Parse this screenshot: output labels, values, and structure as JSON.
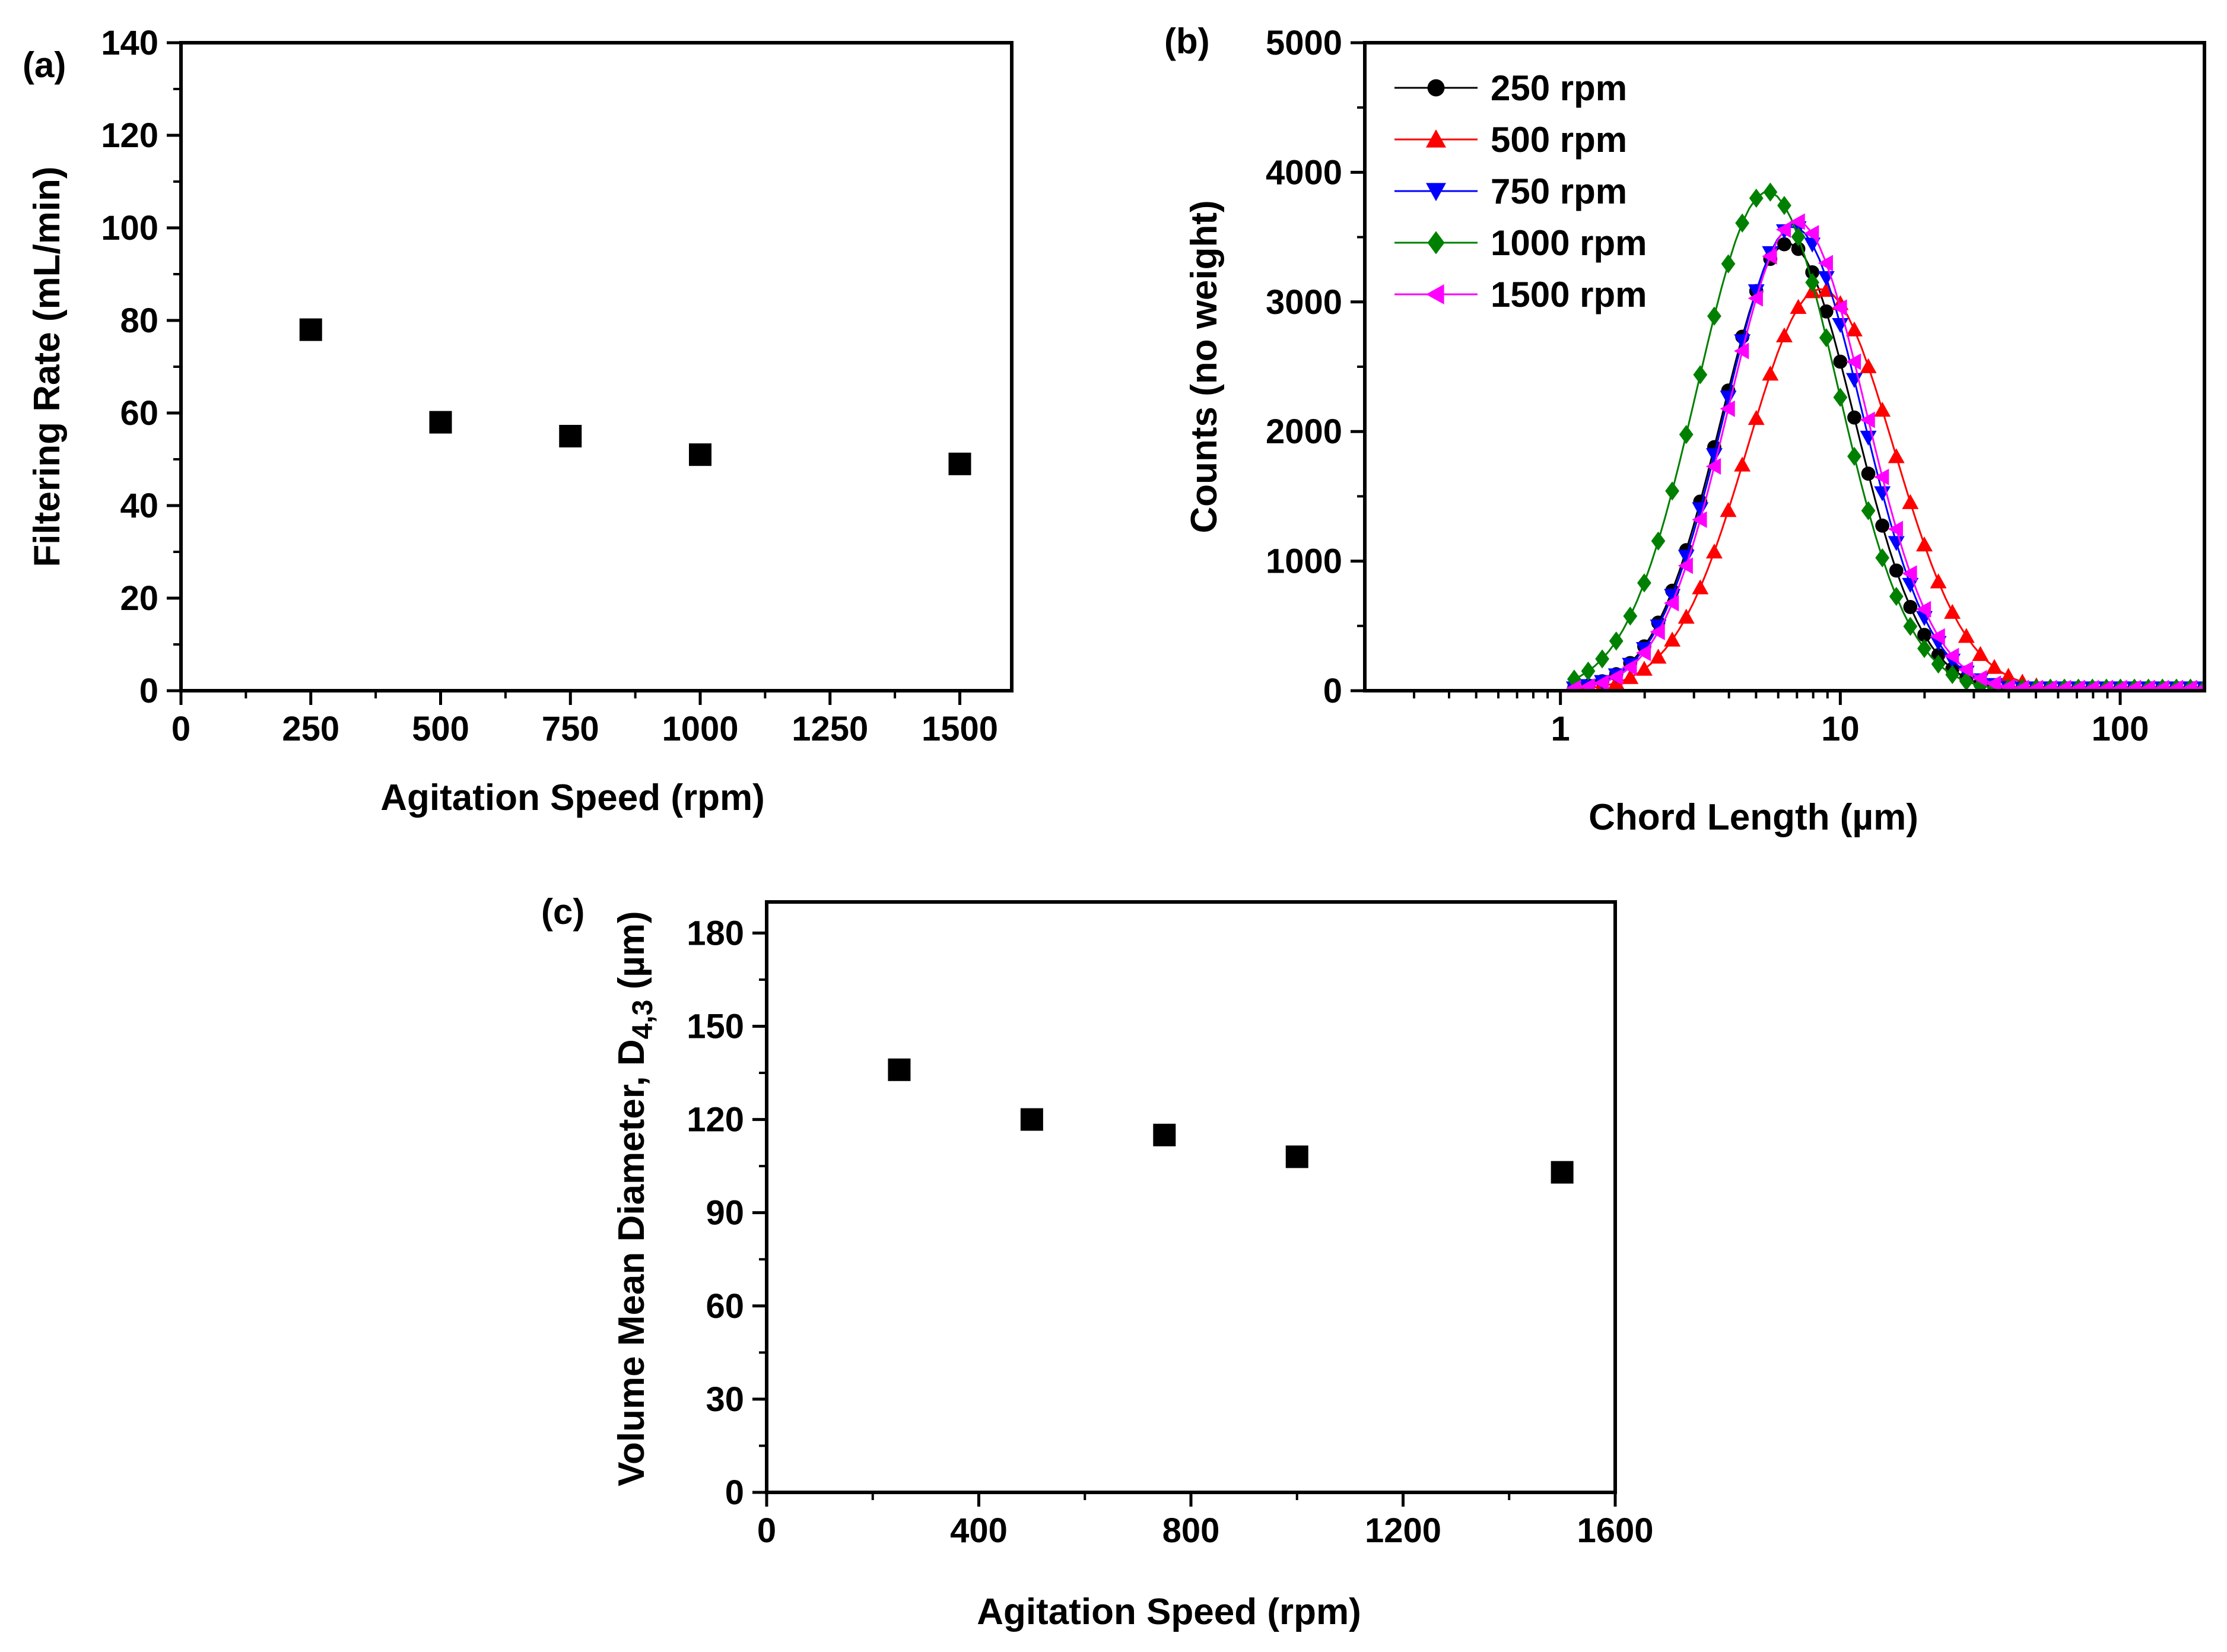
{
  "chart_data": [
    {
      "panel": "(a)",
      "type": "scatter",
      "xlabel": "Agitation Speed (rpm)",
      "ylabel": "Filtering Rate (mL/min)",
      "xlim": [
        0,
        1600
      ],
      "ylim": [
        0,
        140
      ],
      "x_ticks": [
        "0",
        "250",
        "500",
        "750",
        "1000",
        "1250",
        "1500"
      ],
      "x_tick_values": [
        0,
        250,
        500,
        750,
        1000,
        1250,
        1500
      ],
      "y_ticks": [
        "0",
        "20",
        "40",
        "60",
        "80",
        "100",
        "120",
        "140"
      ],
      "y_tick_values": [
        0,
        20,
        40,
        60,
        80,
        100,
        120,
        140
      ],
      "x": [
        250,
        500,
        750,
        1000,
        1500
      ],
      "y": [
        78,
        58,
        55,
        51,
        49
      ],
      "marker": "square",
      "color": "#000000"
    },
    {
      "panel": "(b)",
      "type": "line",
      "xscale": "log",
      "xlabel": "Chord Length (µm)",
      "ylabel": "Counts (no weight)",
      "xlim": [
        0.2,
        200
      ],
      "ylim": [
        0,
        5000
      ],
      "x_ticks": [
        "1",
        "10",
        "100"
      ],
      "x_tick_values": [
        1,
        10,
        100
      ],
      "y_ticks": [
        "0",
        "1000",
        "2000",
        "3000",
        "4000",
        "5000"
      ],
      "y_tick_values": [
        0,
        1000,
        2000,
        3000,
        4000,
        5000
      ],
      "legend_position": "top-left",
      "series": [
        {
          "name": "250 rpm",
          "color": "#000000",
          "marker": "circle",
          "peak_x": 6.5,
          "peak_y": 3450,
          "sigma": 0.55,
          "x_min": 1.12,
          "x_max": 200
        },
        {
          "name": "500 rpm",
          "color": "#ff0000",
          "marker": "triangle-up",
          "peak_x": 8.5,
          "peak_y": 3100,
          "sigma": 0.6,
          "x_min": 1.12,
          "x_max": 200
        },
        {
          "name": "750 rpm",
          "color": "#0000ff",
          "marker": "triangle-down",
          "peak_x": 6.8,
          "peak_y": 3580,
          "sigma": 0.56,
          "x_min": 1.12,
          "x_max": 200
        },
        {
          "name": "1000 rpm",
          "color": "#008000",
          "marker": "diamond",
          "peak_x": 5.5,
          "peak_y": 3850,
          "sigma": 0.58,
          "x_min": 1.12,
          "x_max": 200
        },
        {
          "name": "1500 rpm",
          "color": "#ff00ff",
          "marker": "triangle-left",
          "peak_x": 7.0,
          "peak_y": 3620,
          "sigma": 0.56,
          "x_min": 1.12,
          "x_max": 200
        }
      ]
    },
    {
      "panel": "(c)",
      "type": "scatter",
      "xlabel": "Agitation Speed (rpm)",
      "ylabel": "Volume Mean Diameter, D",
      "ylabel_subscript": "4,3",
      "ylabel_unit": " (µm)",
      "xlim": [
        0,
        1600
      ],
      "ylim": [
        0,
        190
      ],
      "x_ticks": [
        "0",
        "400",
        "800",
        "1200",
        "1600"
      ],
      "x_tick_values": [
        0,
        400,
        800,
        1200,
        1600
      ],
      "y_ticks": [
        "0",
        "30",
        "60",
        "90",
        "120",
        "150",
        "180"
      ],
      "y_tick_values": [
        0,
        30,
        60,
        90,
        120,
        150,
        180
      ],
      "x": [
        250,
        500,
        750,
        1000,
        1500
      ],
      "y": [
        136,
        120,
        115,
        108,
        103
      ],
      "marker": "square",
      "color": "#000000"
    }
  ]
}
